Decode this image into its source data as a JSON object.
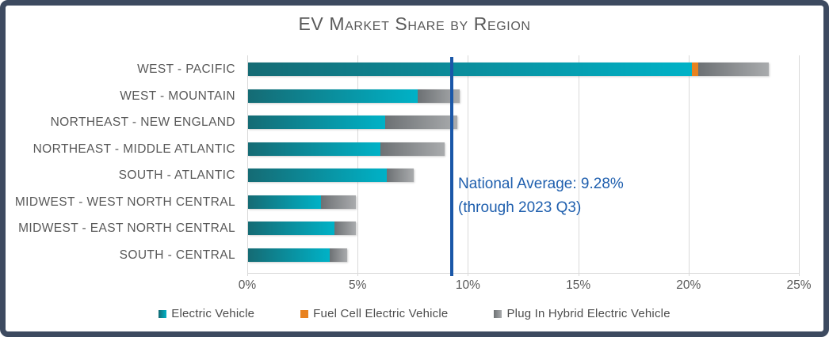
{
  "title": "EV Market Share by Region",
  "annotation": {
    "line1": "National Average: 9.28%",
    "line2": "(through 2023 Q3)",
    "value_percent": 9.28
  },
  "colors": {
    "border": "#3d4a60",
    "title_text": "#595959",
    "axis_text": "#595959",
    "gridline": "#d9d9d9",
    "average_line": "#1a57a8",
    "annotation_text": "#1f5fae",
    "ev_gradient_start": "#156b74",
    "ev_gradient_end": "#00b2c7",
    "fcev": "#e8821f",
    "phev_gradient_start": "#6d7174",
    "phev_gradient_end": "#a9abad"
  },
  "chart_data": {
    "type": "bar",
    "orientation": "horizontal",
    "stacked": true,
    "title": "EV Market Share by Region",
    "xlabel": "",
    "ylabel": "",
    "xlim": [
      0,
      25
    ],
    "grid": true,
    "legend_position": "bottom",
    "categories": [
      "WEST - PACIFIC",
      "WEST - MOUNTAIN",
      "NORTHEAST - NEW ENGLAND",
      "NORTHEAST - MIDDLE ATLANTIC",
      "SOUTH - ATLANTIC",
      "MIDWEST - WEST NORTH CENTRAL",
      "MIDWEST - EAST NORTH CENTRAL",
      "SOUTH - CENTRAL"
    ],
    "series": [
      {
        "name": "Electric Vehicle",
        "color_start": "#156b74",
        "color_end": "#00b2c7",
        "values": [
          20.1,
          7.7,
          6.2,
          6.0,
          6.3,
          3.3,
          3.9,
          3.7
        ]
      },
      {
        "name": "Fuel Cell Electric Vehicle",
        "color_start": "#e8821f",
        "color_end": "#e8821f",
        "values": [
          0.3,
          0,
          0,
          0,
          0,
          0,
          0,
          0
        ]
      },
      {
        "name": "Plug In Hybrid Electric Vehicle",
        "color_start": "#6d7174",
        "color_end": "#a9abad",
        "values": [
          3.2,
          1.9,
          3.3,
          2.9,
          1.2,
          1.6,
          1.0,
          0.8
        ]
      }
    ],
    "x_ticks": [
      {
        "label": "0%",
        "value": 0
      },
      {
        "label": "5%",
        "value": 5
      },
      {
        "label": "10%",
        "value": 10
      },
      {
        "label": "15%",
        "value": 15
      },
      {
        "label": "20%",
        "value": 20
      },
      {
        "label": "25%",
        "value": 25
      }
    ],
    "reference_line": {
      "label": "National Average: 9.28% (through 2023 Q3)",
      "value": 9.28
    }
  }
}
